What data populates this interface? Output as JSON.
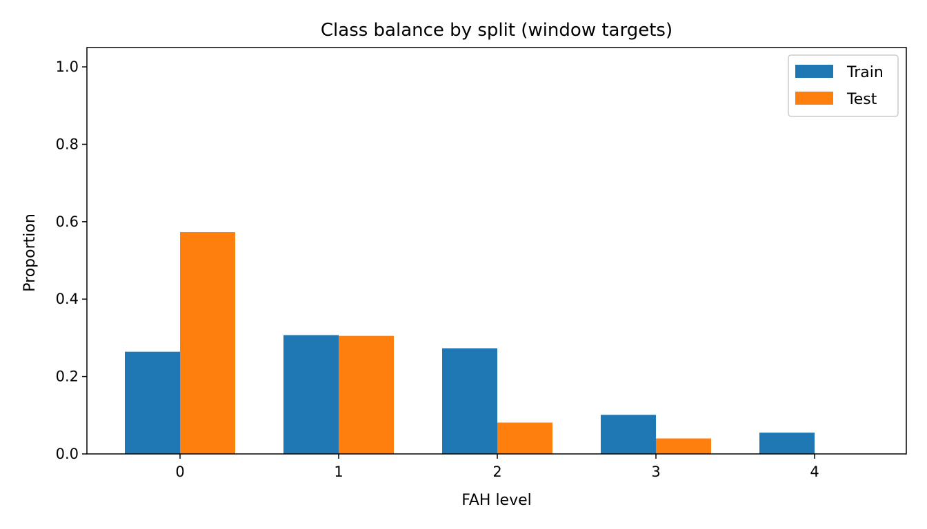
{
  "chart_data": {
    "type": "bar",
    "title": "Class balance by split (window targets)",
    "xlabel": "FAH level",
    "ylabel": "Proportion",
    "categories": [
      "0",
      "1",
      "2",
      "3",
      "4"
    ],
    "series": [
      {
        "name": "Train",
        "color": "#1f77b4",
        "values": [
          0.264,
          0.307,
          0.273,
          0.101,
          0.055
        ]
      },
      {
        "name": "Test",
        "color": "#ff7f0e",
        "values": [
          0.573,
          0.305,
          0.081,
          0.04,
          0.0
        ]
      }
    ],
    "ylim": [
      0,
      1.05
    ],
    "yticks": [
      "0.0",
      "0.2",
      "0.4",
      "0.6",
      "0.8",
      "1.0"
    ],
    "grid": false,
    "legend_position": "top-right"
  }
}
